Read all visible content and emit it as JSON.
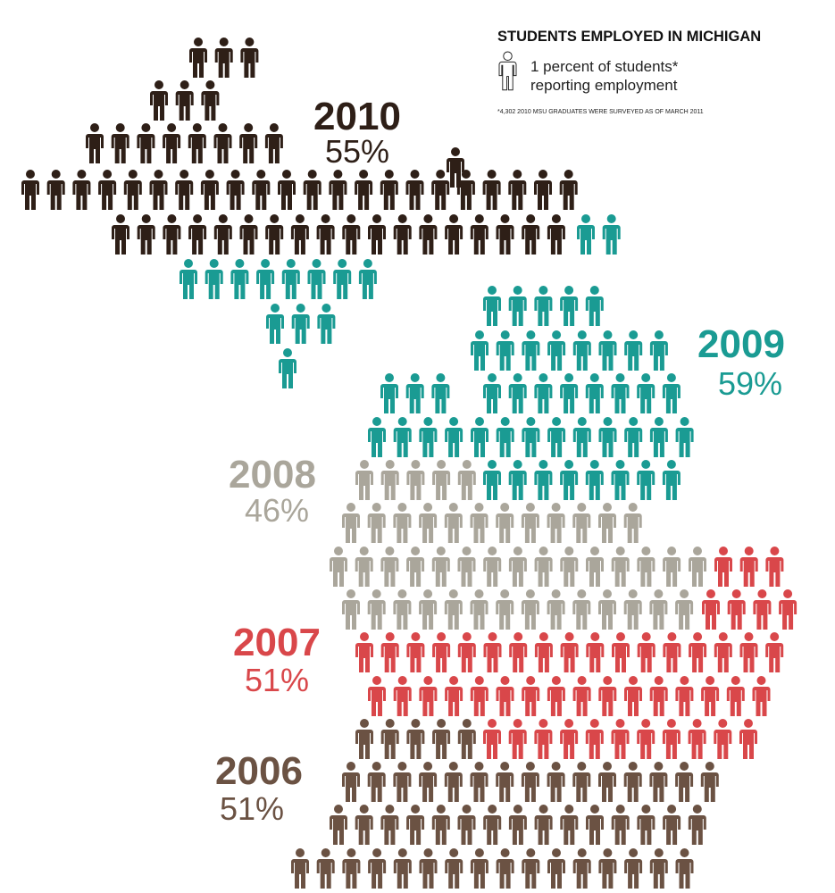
{
  "chart_data": {
    "type": "pictograph",
    "title": "STUDENTS EMPLOYED IN MICHIGAN",
    "unit_label": [
      "1 percent of students*",
      "reporting employment"
    ],
    "footnote": "*4,302 2010 MSU GRADUATES WERE SURVEYED AS OF MARCH 2011",
    "categories": [
      "2010",
      "2009",
      "2008",
      "2007",
      "2006"
    ],
    "values": [
      55,
      59,
      46,
      51,
      51
    ],
    "value_labels": [
      "55%",
      "59%",
      "46%",
      "51%",
      "51%"
    ],
    "colors": [
      "#2e1f17",
      "#1a9b93",
      "#aaa69b",
      "#d9474a",
      "#6b5243"
    ]
  }
}
